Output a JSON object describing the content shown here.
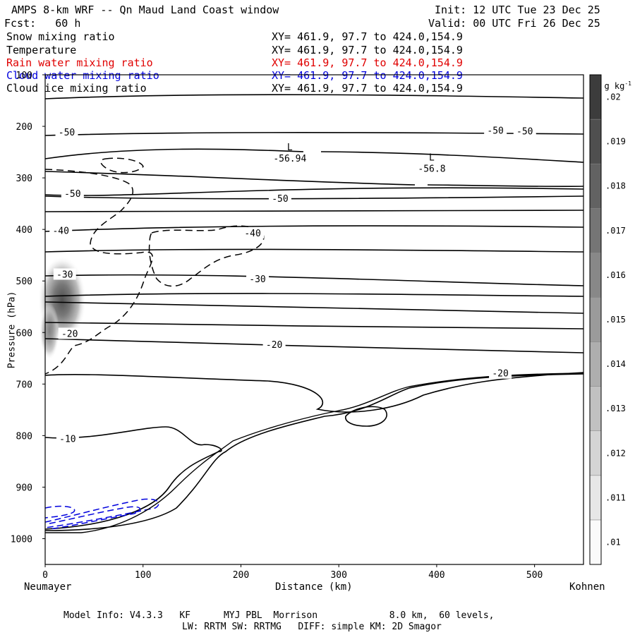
{
  "header": {
    "title": "AMPS 8-km WRF -- Qn Maud Land Coast window",
    "forecast": "Fcst:   60 h",
    "init": "Init: 12 UTC Tue 23 Dec 25",
    "valid": "Valid: 00 UTC Fri 26 Dec 25"
  },
  "fields": [
    {
      "name": "Snow mixing ratio",
      "xy": "XY= 461.9, 97.7 to 424.0,154.9",
      "color": "#000000"
    },
    {
      "name": "Temperature",
      "xy": "XY= 461.9, 97.7 to 424.0,154.9",
      "color": "#000000"
    },
    {
      "name": "Rain water mixing ratio",
      "xy": "XY= 461.9, 97.7 to 424.0,154.9",
      "color": "#ff0000"
    },
    {
      "name": "Cloud water mixing ratio",
      "xy": "XY= 461.9, 97.7 to 424.0,154.9",
      "color": "#0000ff"
    },
    {
      "name": "Cloud ice mixing ratio",
      "xy": "XY= 461.9, 97.7 to 424.0,154.9",
      "color": "#000000"
    }
  ],
  "chart_data": {
    "type": "contour",
    "xlabel": "Distance (km)",
    "ylabel": "Pressure (hPa)",
    "xlim": [
      0,
      550
    ],
    "ylim": [
      1050,
      100
    ],
    "x_ticks": [
      "0",
      "100",
      "200",
      "300",
      "400",
      "500"
    ],
    "x_tick_values": [
      0,
      100,
      200,
      300,
      400,
      500
    ],
    "y_ticks": [
      "100",
      "200",
      "300",
      "400",
      "500",
      "600",
      "700",
      "800",
      "900",
      "1000"
    ],
    "y_tick_values": [
      100,
      200,
      300,
      400,
      500,
      600,
      700,
      800,
      900,
      1000
    ],
    "left_endpoint": "Neumayer",
    "right_endpoint": "Kohnen",
    "temperature_labels": [
      {
        "text": "-50",
        "x": 22,
        "p": 212
      },
      {
        "text": "-50",
        "x": 460,
        "p": 209
      },
      {
        "text": "-50",
        "x": 490,
        "p": 210
      },
      {
        "text": "-50",
        "x": 28,
        "p": 331
      },
      {
        "text": "-50",
        "x": 240,
        "p": 341
      },
      {
        "text": "-40",
        "x": 16,
        "p": 403
      },
      {
        "text": "-40",
        "x": 212,
        "p": 408
      },
      {
        "text": "-30",
        "x": 20,
        "p": 488
      },
      {
        "text": "-30",
        "x": 217,
        "p": 497
      },
      {
        "text": "-20",
        "x": 25,
        "p": 603
      },
      {
        "text": "-20",
        "x": 234,
        "p": 624
      },
      {
        "text": "-20",
        "x": 465,
        "p": 680
      },
      {
        "text": "-10",
        "x": 23,
        "p": 807
      }
    ],
    "lows": [
      {
        "label": "L",
        "value": "-56.94",
        "x": 250,
        "p": 263
      },
      {
        "label": "L",
        "value": "-56.8",
        "x": 395,
        "p": 283
      }
    ],
    "colorbar": {
      "unit": "g kg",
      "unit_exp": "-1",
      "levels": [
        "0.01",
        ".011",
        ".012",
        ".013",
        ".014",
        ".015",
        ".016",
        ".017",
        ".018",
        ".019",
        ".02"
      ],
      "tick_labels": [
        ".01",
        ".011",
        ".012",
        ".013",
        ".014",
        ".015",
        ".016",
        ".017",
        ".018",
        ".019",
        ".02"
      ]
    },
    "snow_max_region": {
      "x": 20,
      "p": 530,
      "value": 0.016
    }
  },
  "footer": {
    "line1": "Model Info: V4.3.3   KF      MYJ PBL  Morrison             8.0 km,  60 levels,",
    "line2": "LW: RRTM SW: RRTMG   DIFF: simple KM: 2D Smagor"
  }
}
